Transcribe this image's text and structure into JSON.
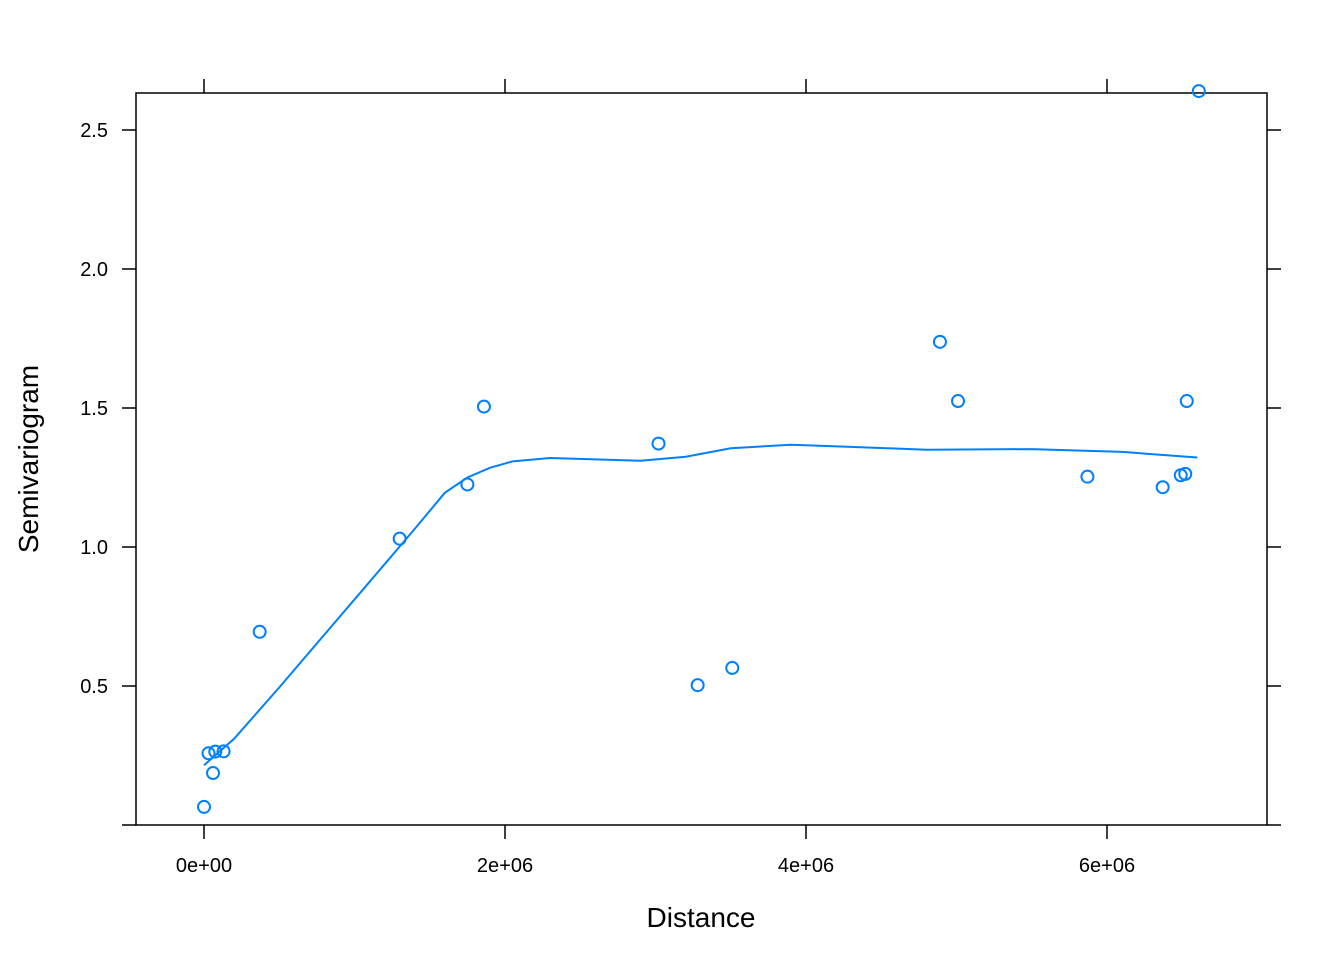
{
  "chart_data": {
    "type": "scatter",
    "xlabel": "Distance",
    "ylabel": "Semivariogram",
    "xlim": [
      -450000,
      7100000
    ],
    "ylim": [
      0,
      2.64
    ],
    "x_ticks": [
      {
        "value": 0,
        "label": "0e+00"
      },
      {
        "value": 2000000,
        "label": "2e+06"
      },
      {
        "value": 4000000,
        "label": "4e+06"
      },
      {
        "value": 6000000,
        "label": "6e+06"
      }
    ],
    "y_ticks": [
      {
        "value": 0.5,
        "label": "0.5"
      },
      {
        "value": 1.0,
        "label": "1.0"
      },
      {
        "value": 1.5,
        "label": "1.5"
      },
      {
        "value": 2.0,
        "label": "2.0"
      },
      {
        "value": 2.5,
        "label": "2.5"
      }
    ],
    "grid": false,
    "colors": {
      "series": "#0080ff",
      "axis": "#000000"
    },
    "points": [
      {
        "x": 0,
        "y": 0.065
      },
      {
        "x": 30000,
        "y": 0.258
      },
      {
        "x": 60000,
        "y": 0.187
      },
      {
        "x": 75000,
        "y": 0.264
      },
      {
        "x": 130000,
        "y": 0.265
      },
      {
        "x": 370000,
        "y": 0.695
      },
      {
        "x": 1300000,
        "y": 1.03
      },
      {
        "x": 1750000,
        "y": 1.225
      },
      {
        "x": 1860000,
        "y": 1.505
      },
      {
        "x": 3020000,
        "y": 1.372
      },
      {
        "x": 3280000,
        "y": 0.503
      },
      {
        "x": 3510000,
        "y": 0.565
      },
      {
        "x": 4890000,
        "y": 1.738
      },
      {
        "x": 5010000,
        "y": 1.525
      },
      {
        "x": 5870000,
        "y": 1.253
      },
      {
        "x": 6370000,
        "y": 1.215
      },
      {
        "x": 6490000,
        "y": 1.258
      },
      {
        "x": 6520000,
        "y": 1.263
      },
      {
        "x": 6530000,
        "y": 1.525
      },
      {
        "x": 6610000,
        "y": 2.64
      }
    ],
    "smooth_line": [
      {
        "x": 0,
        "y": 0.215
      },
      {
        "x": 200000,
        "y": 0.31
      },
      {
        "x": 500000,
        "y": 0.495
      },
      {
        "x": 800000,
        "y": 0.685
      },
      {
        "x": 1100000,
        "y": 0.875
      },
      {
        "x": 1400000,
        "y": 1.065
      },
      {
        "x": 1600000,
        "y": 1.195
      },
      {
        "x": 1750000,
        "y": 1.25
      },
      {
        "x": 1900000,
        "y": 1.285
      },
      {
        "x": 2050000,
        "y": 1.308
      },
      {
        "x": 2300000,
        "y": 1.32
      },
      {
        "x": 2600000,
        "y": 1.315
      },
      {
        "x": 2900000,
        "y": 1.31
      },
      {
        "x": 3200000,
        "y": 1.325
      },
      {
        "x": 3500000,
        "y": 1.355
      },
      {
        "x": 3900000,
        "y": 1.368
      },
      {
        "x": 4300000,
        "y": 1.36
      },
      {
        "x": 4800000,
        "y": 1.35
      },
      {
        "x": 5500000,
        "y": 1.352
      },
      {
        "x": 6100000,
        "y": 1.342
      },
      {
        "x": 6600000,
        "y": 1.322
      }
    ]
  }
}
